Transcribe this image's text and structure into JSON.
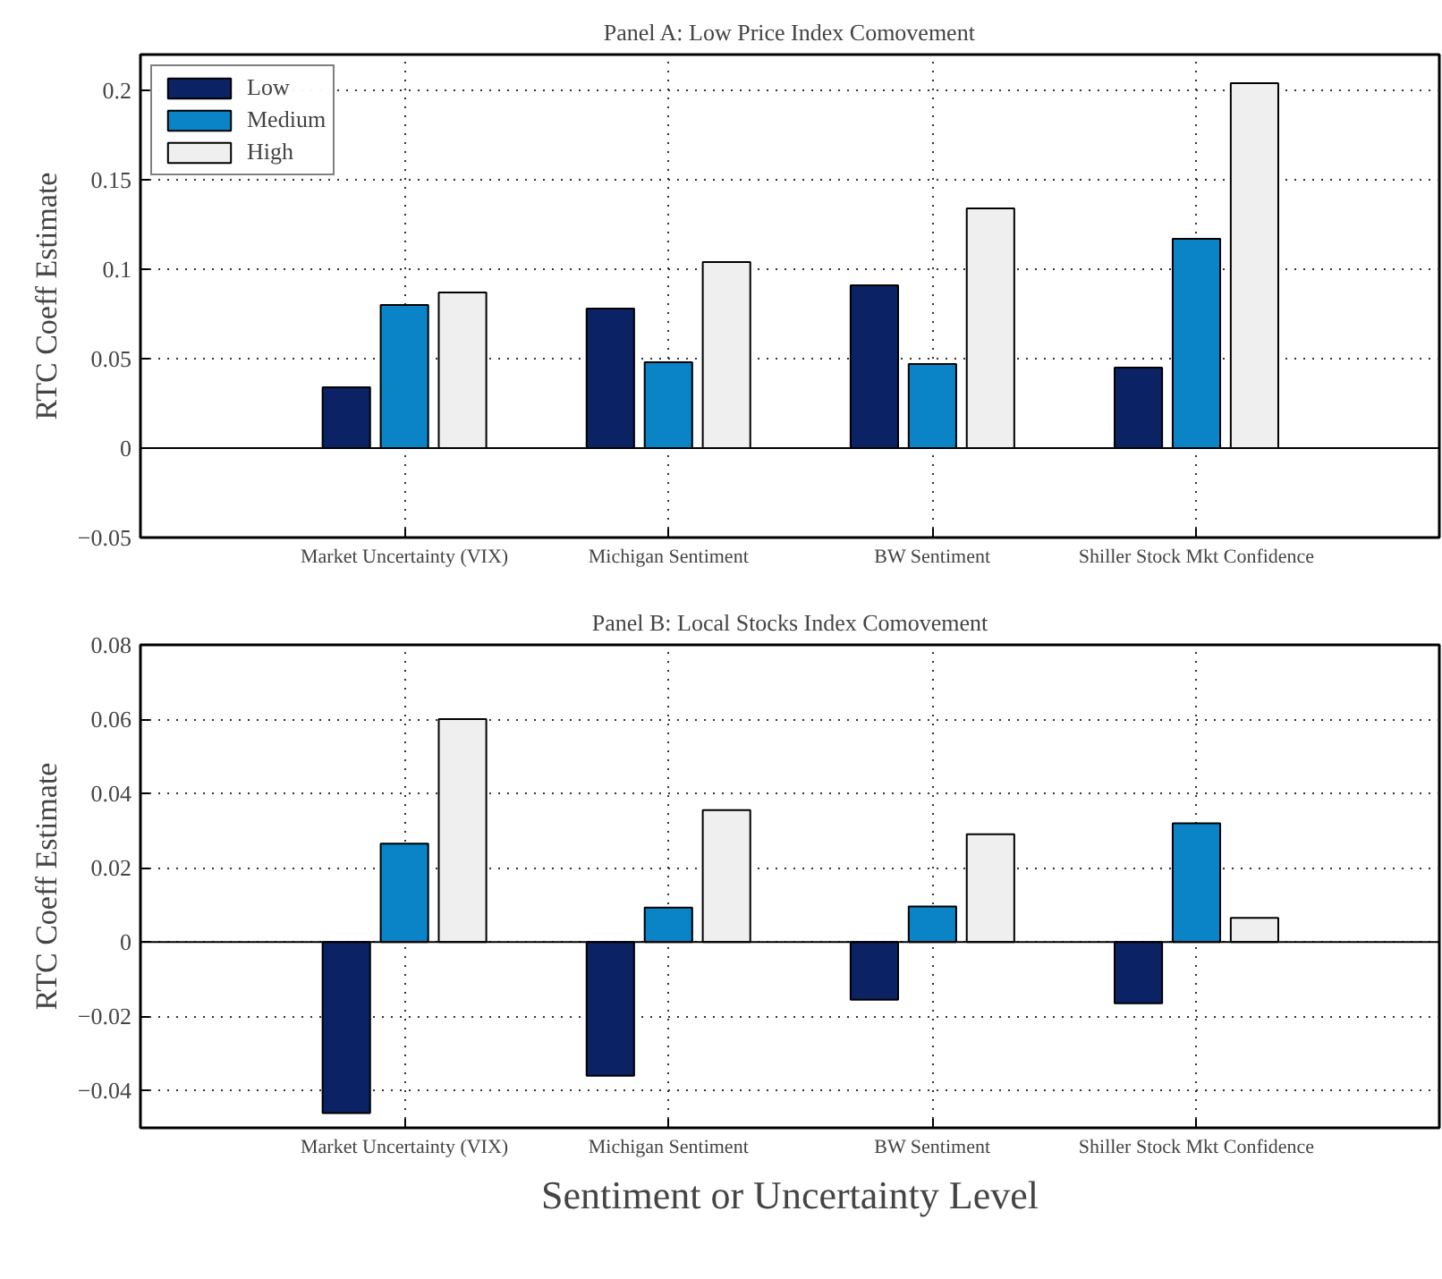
{
  "chart_data": [
    {
      "type": "bar",
      "title": "Panel A: Low Price Index Comovement",
      "ylabel": "RTC Coeff Estimate",
      "categories": [
        "Market Uncertainty (VIX)",
        "Michigan Sentiment",
        "BW Sentiment",
        "Shiller Stock Mkt Confidence"
      ],
      "series": [
        {
          "name": "Low",
          "color": "#0b2265",
          "values": [
            0.034,
            0.078,
            0.091,
            0.045
          ]
        },
        {
          "name": "Medium",
          "color": "#0a84c6",
          "values": [
            0.08,
            0.048,
            0.047,
            0.117
          ]
        },
        {
          "name": "High",
          "color": "#efefef",
          "values": [
            0.087,
            0.104,
            0.134,
            0.204
          ]
        }
      ],
      "ylim": [
        -0.05,
        0.22
      ],
      "yticks": [
        -0.05,
        0,
        0.05,
        0.1,
        0.15,
        0.2
      ],
      "grid": true,
      "legend": "top left"
    },
    {
      "type": "bar",
      "title": "Panel B: Local Stocks Index Comovement",
      "ylabel": "RTC Coeff Estimate",
      "xlabel": "Sentiment or Uncertainty Level",
      "categories": [
        "Market Uncertainty (VIX)",
        "Michigan Sentiment",
        "BW Sentiment",
        "Shiller Stock Mkt Confidence"
      ],
      "series": [
        {
          "color": "#0b2265",
          "values": [
            -0.046,
            -0.036,
            -0.0155,
            -0.0165
          ]
        },
        {
          "color": "#0a84c6",
          "values": [
            0.0265,
            0.0093,
            0.0096,
            0.032
          ]
        },
        {
          "color": "#efefef",
          "values": [
            0.06,
            0.0355,
            0.029,
            0.0065
          ]
        }
      ],
      "ylim": [
        -0.05,
        0.08
      ],
      "yticks": [
        -0.04,
        -0.02,
        0,
        0.02,
        0.04,
        0.06,
        0.08
      ],
      "grid": true
    }
  ]
}
